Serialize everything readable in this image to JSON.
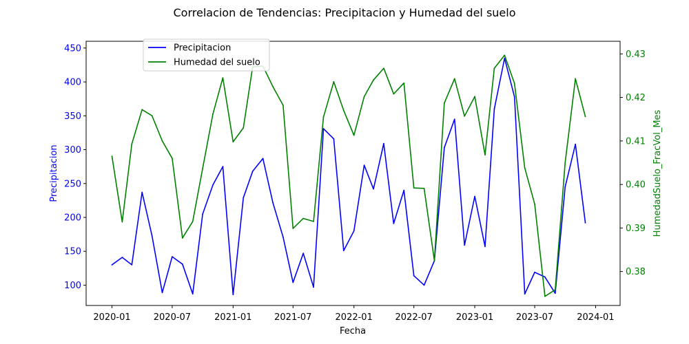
{
  "chart_data": {
    "type": "line",
    "title": "Correlacion de Tendencias: Precipitacion y Humedad del suelo",
    "xlabel": "Fecha",
    "ylabel_left": "Precipitacion",
    "ylabel_right": "HumedadSuelo_FracVol_Mes",
    "x": [
      "2020-01",
      "2020-02",
      "2020-03",
      "2020-04",
      "2020-05",
      "2020-06",
      "2020-07",
      "2020-08",
      "2020-09",
      "2020-10",
      "2020-11",
      "2020-12",
      "2021-01",
      "2021-02",
      "2021-03",
      "2021-04",
      "2021-05",
      "2021-06",
      "2021-07",
      "2021-08",
      "2021-09",
      "2021-10",
      "2021-11",
      "2021-12",
      "2022-01",
      "2022-02",
      "2022-03",
      "2022-04",
      "2022-05",
      "2022-06",
      "2022-07",
      "2022-08",
      "2022-09",
      "2022-10",
      "2022-11",
      "2022-12",
      "2023-01",
      "2023-02",
      "2023-03",
      "2023-04",
      "2023-05",
      "2023-06",
      "2023-07",
      "2023-08",
      "2023-09",
      "2023-10",
      "2023-11",
      "2023-12"
    ],
    "x_ticks": [
      "2020-01",
      "2020-07",
      "2021-01",
      "2021-07",
      "2022-01",
      "2022-07",
      "2023-01",
      "2023-07",
      "2024-01"
    ],
    "xlim": [
      "2019-10-15",
      "2024-03-15"
    ],
    "y_left_ticks": [
      100,
      150,
      200,
      250,
      300,
      350,
      400,
      450
    ],
    "y_left_lim": [
      70,
      460
    ],
    "y_right_ticks": [
      0.38,
      0.39,
      0.4,
      0.41,
      0.42,
      0.43
    ],
    "y_right_lim": [
      0.3722,
      0.4329
    ],
    "grid": false,
    "legend_placement": "upper-left",
    "series": [
      {
        "name": "Precipitacion",
        "axis": "left",
        "color": "#0000ff",
        "values": [
          130,
          141,
          130,
          237,
          173,
          89,
          142,
          131,
          87,
          205,
          248,
          275,
          86,
          229,
          268,
          287,
          222,
          171,
          104,
          147,
          97,
          331,
          316,
          151,
          180,
          277,
          242,
          309,
          191,
          240,
          114,
          100,
          136,
          303,
          345,
          159,
          231,
          157,
          360,
          435,
          378,
          87,
          119,
          112,
          88,
          245,
          308,
          192
        ]
      },
      {
        "name": "Humedad del suelo",
        "axis": "right",
        "color": "#008000",
        "values": [
          0.4065,
          0.3914,
          0.4093,
          0.4172,
          0.4158,
          0.41,
          0.406,
          0.3877,
          0.3915,
          0.4037,
          0.4162,
          0.4245,
          0.4098,
          0.413,
          0.427,
          0.4272,
          0.4225,
          0.4182,
          0.3899,
          0.3922,
          0.3915,
          0.4155,
          0.4236,
          0.417,
          0.4113,
          0.4202,
          0.424,
          0.4267,
          0.4208,
          0.4233,
          0.3992,
          0.3991,
          0.3825,
          0.4187,
          0.4243,
          0.4157,
          0.4202,
          0.4068,
          0.4267,
          0.4297,
          0.4232,
          0.4038,
          0.3955,
          0.3743,
          0.3758,
          0.405,
          0.4243,
          0.4156
        ]
      }
    ]
  }
}
